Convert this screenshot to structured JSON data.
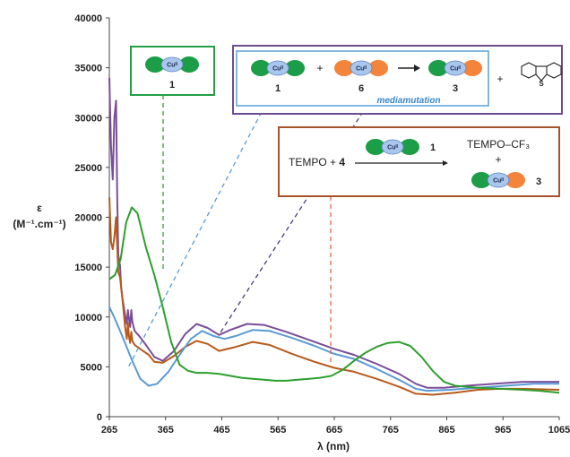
{
  "chart_data": {
    "type": "line",
    "xlabel": "λ (nm)",
    "ylabel_line1": "ε",
    "ylabel_line2": "(M⁻¹.cm⁻¹)",
    "xlim": [
      265,
      1065
    ],
    "ylim": [
      0,
      40000
    ],
    "xticks": [
      "265",
      "365",
      "465",
      "565",
      "665",
      "765",
      "865",
      "965",
      "1065"
    ],
    "yticks": [
      "0",
      "5000",
      "10000",
      "15000",
      "20000",
      "25000",
      "30000",
      "35000",
      "40000"
    ],
    "grid": false,
    "series": [
      {
        "color": "#7a4e9a",
        "points": [
          [
            265,
            34000
          ],
          [
            268,
            27000
          ],
          [
            271,
            23800
          ],
          [
            274,
            30000
          ],
          [
            277,
            31700
          ],
          [
            279,
            22000
          ],
          [
            281,
            16200
          ],
          [
            284,
            15200
          ],
          [
            286,
            13000
          ],
          [
            288,
            12000
          ],
          [
            293,
            10200
          ],
          [
            296,
            9300
          ],
          [
            298,
            10700
          ],
          [
            300,
            9800
          ],
          [
            302,
            9000
          ],
          [
            304,
            10700
          ],
          [
            306,
            9500
          ],
          [
            310,
            8600
          ],
          [
            318,
            8100
          ],
          [
            330,
            7200
          ],
          [
            345,
            6000
          ],
          [
            360,
            5600
          ],
          [
            380,
            6600
          ],
          [
            400,
            8300
          ],
          [
            420,
            9300
          ],
          [
            440,
            8900
          ],
          [
            460,
            8200
          ],
          [
            480,
            8700
          ],
          [
            510,
            9300
          ],
          [
            540,
            9200
          ],
          [
            580,
            8500
          ],
          [
            620,
            7700
          ],
          [
            665,
            6800
          ],
          [
            700,
            6200
          ],
          [
            740,
            5300
          ],
          [
            780,
            4300
          ],
          [
            810,
            3300
          ],
          [
            830,
            2900
          ],
          [
            860,
            2900
          ],
          [
            900,
            3100
          ],
          [
            950,
            3300
          ],
          [
            1000,
            3500
          ],
          [
            1065,
            3500
          ]
        ]
      },
      {
        "color": "#b85a1a",
        "points": [
          [
            265,
            22000
          ],
          [
            268,
            17500
          ],
          [
            271,
            16800
          ],
          [
            274,
            18000
          ],
          [
            277,
            20000
          ],
          [
            279,
            17000
          ],
          [
            281,
            14500
          ],
          [
            284,
            14000
          ],
          [
            288,
            12000
          ],
          [
            293,
            9000
          ],
          [
            296,
            7800
          ],
          [
            298,
            9400
          ],
          [
            300,
            8000
          ],
          [
            302,
            7400
          ],
          [
            304,
            8500
          ],
          [
            306,
            7600
          ],
          [
            310,
            7200
          ],
          [
            320,
            6800
          ],
          [
            335,
            6200
          ],
          [
            345,
            5500
          ],
          [
            360,
            5400
          ],
          [
            380,
            6100
          ],
          [
            400,
            7000
          ],
          [
            420,
            7600
          ],
          [
            440,
            7300
          ],
          [
            460,
            6600
          ],
          [
            490,
            7000
          ],
          [
            520,
            7500
          ],
          [
            550,
            7200
          ],
          [
            590,
            6300
          ],
          [
            630,
            5500
          ],
          [
            665,
            4900
          ],
          [
            700,
            4500
          ],
          [
            740,
            3800
          ],
          [
            780,
            3000
          ],
          [
            810,
            2300
          ],
          [
            840,
            2200
          ],
          [
            880,
            2400
          ],
          [
            920,
            2700
          ],
          [
            960,
            2800
          ],
          [
            1000,
            2800
          ],
          [
            1065,
            2700
          ]
        ]
      },
      {
        "color": "#5b9bd5",
        "points": [
          [
            265,
            11000
          ],
          [
            275,
            9800
          ],
          [
            290,
            7800
          ],
          [
            305,
            5700
          ],
          [
            320,
            3800
          ],
          [
            335,
            3100
          ],
          [
            350,
            3300
          ],
          [
            370,
            4500
          ],
          [
            390,
            6200
          ],
          [
            410,
            7800
          ],
          [
            430,
            8600
          ],
          [
            450,
            8100
          ],
          [
            470,
            7800
          ],
          [
            490,
            8100
          ],
          [
            520,
            8700
          ],
          [
            550,
            8600
          ],
          [
            590,
            7900
          ],
          [
            630,
            7100
          ],
          [
            665,
            6300
          ],
          [
            700,
            5800
          ],
          [
            740,
            4800
          ],
          [
            780,
            3700
          ],
          [
            810,
            2800
          ],
          [
            830,
            2600
          ],
          [
            870,
            2700
          ],
          [
            920,
            2900
          ],
          [
            970,
            3100
          ],
          [
            1020,
            3300
          ],
          [
            1065,
            3300
          ]
        ]
      },
      {
        "color": "#2ca02c",
        "points": [
          [
            265,
            13800
          ],
          [
            275,
            14200
          ],
          [
            285,
            15800
          ],
          [
            295,
            19500
          ],
          [
            305,
            21000
          ],
          [
            315,
            20400
          ],
          [
            330,
            17000
          ],
          [
            345,
            14200
          ],
          [
            360,
            11000
          ],
          [
            375,
            7500
          ],
          [
            390,
            5200
          ],
          [
            405,
            4600
          ],
          [
            420,
            4400
          ],
          [
            440,
            4400
          ],
          [
            460,
            4300
          ],
          [
            480,
            4100
          ],
          [
            500,
            3900
          ],
          [
            520,
            3800
          ],
          [
            540,
            3700
          ],
          [
            560,
            3600
          ],
          [
            580,
            3600
          ],
          [
            600,
            3700
          ],
          [
            620,
            3800
          ],
          [
            640,
            3900
          ],
          [
            660,
            4100
          ],
          [
            680,
            4700
          ],
          [
            700,
            5600
          ],
          [
            720,
            6400
          ],
          [
            740,
            7000
          ],
          [
            760,
            7400
          ],
          [
            780,
            7500
          ],
          [
            800,
            7100
          ],
          [
            820,
            6000
          ],
          [
            840,
            4600
          ],
          [
            860,
            3500
          ],
          [
            880,
            3100
          ],
          [
            920,
            2900
          ],
          [
            960,
            2800
          ],
          [
            1000,
            2700
          ],
          [
            1030,
            2600
          ],
          [
            1065,
            2400
          ]
        ]
      }
    ]
  },
  "panels": {
    "complex1": {
      "cu_label": "Cuᴵᴵ",
      "number": "1"
    },
    "mediamutation": {
      "term1": "1",
      "plus": "+",
      "term2": "6",
      "product": "3",
      "plus2": "+",
      "caption": "mediamutation",
      "cu_label": "Cuᴵᴵ"
    },
    "tempo": {
      "reactant": "TEMPO + ",
      "reactant_number": "4",
      "catalyst": "1",
      "product1": "TEMPO–CF₃",
      "plus": "+",
      "product2": "3",
      "cu_label": "Cuᴵᴵ"
    }
  },
  "colors": {
    "green": "#1c9e48",
    "orange": "#f4843a",
    "cu_fill": "#a9c6ec",
    "green_box": "#23a045",
    "purple_box": "#6e4c8f",
    "blue_box": "#5aa1d8",
    "brown_box": "#a4532a"
  }
}
